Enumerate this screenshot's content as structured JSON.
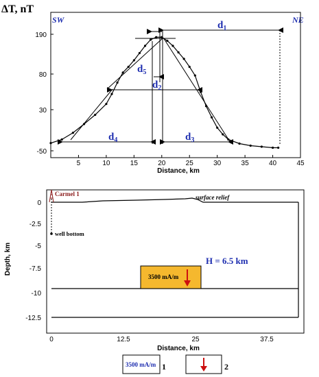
{
  "top_chart": {
    "ylabel": "ΔT, nT",
    "left_corner": "SW",
    "right_corner": "NE",
    "xlabel": "Distance, km",
    "yticks": [
      {
        "value": 190,
        "label": "190"
      },
      {
        "value": 80,
        "label": "80"
      },
      {
        "value": 30,
        "label": "30"
      },
      {
        "value": -50,
        "label": "-50"
      }
    ],
    "xticks": [
      {
        "value": 5,
        "label": "5"
      },
      {
        "value": 10,
        "label": "10"
      },
      {
        "value": 15,
        "label": "15"
      },
      {
        "value": 20,
        "label": "20"
      },
      {
        "value": 25,
        "label": "25"
      },
      {
        "value": 30,
        "label": "30"
      },
      {
        "value": 35,
        "label": "35"
      },
      {
        "value": 40,
        "label": "40"
      },
      {
        "value": 45,
        "label": "45"
      }
    ],
    "measures": {
      "d1": "d",
      "d2": "d",
      "d3": "d",
      "d4": "d",
      "d5": "d",
      "s1": "1",
      "s2": "2",
      "s3": "3",
      "s4": "4",
      "s5": "5"
    },
    "accent_color": "#1f2fb0"
  },
  "bottom_chart": {
    "ylabel": "Depth, km",
    "xlabel": "Distance, km",
    "well_name": "Carmel 1",
    "well_bottom": "well bottom",
    "surface_relief": "surface relief",
    "body_label": "3500 mA/m",
    "h_label": "H = 6.5 km",
    "yticks": [
      "0",
      "-2.5",
      "-5",
      "-7.5",
      "-10",
      "-12.5"
    ],
    "xticks": [
      "0",
      "12.5",
      "25",
      "37.5"
    ],
    "body_fill": "#f5b82e",
    "well_color": "#8a1a1a",
    "arrow_color": "#cc1010"
  },
  "legend": {
    "item1_label": "3500 mA/m",
    "item1_number": "1",
    "item2_number": "2"
  },
  "chart_data": [
    {
      "type": "line",
      "title": "",
      "xlabel": "Distance, km",
      "ylabel": "ΔT, nT",
      "xlim": [
        0,
        45
      ],
      "ylim": [
        -50,
        210
      ],
      "y_axis_scale": "nonlinear (ticks at -50, 30, 80, 190)",
      "x": [
        0,
        2,
        4,
        6,
        8,
        10,
        11,
        12,
        13,
        14,
        15,
        16,
        17,
        18,
        19,
        20,
        21,
        22,
        23,
        24,
        25,
        26,
        27,
        28,
        29,
        30,
        31,
        32,
        34,
        36,
        38,
        40,
        41
      ],
      "y": [
        -35,
        -28,
        -15,
        2,
        20,
        38,
        52,
        68,
        84,
        100,
        118,
        138,
        158,
        175,
        182,
        182,
        172,
        158,
        140,
        122,
        100,
        78,
        55,
        35,
        15,
        -5,
        -18,
        -28,
        -36,
        -40,
        -42,
        -44,
        -44
      ],
      "annotations": [
        "d1",
        "d2",
        "d3",
        "d4",
        "d5",
        "SW",
        "NE"
      ]
    },
    {
      "type": "table",
      "title": "",
      "xlabel": "Distance, km",
      "ylabel": "Depth, km",
      "xlim": [
        -1,
        44
      ],
      "ylim": [
        -13.5,
        1.5
      ],
      "well": {
        "name": "Carmel 1",
        "x": 0
      },
      "magnetized_body": {
        "label": "3500 mA/m",
        "x_range": [
          15,
          24
        ],
        "depth_range": [
          -7.5,
          -9.5
        ]
      },
      "layer_boundary_depth": -9.5,
      "annotations": [
        "surface relief",
        "well bottom",
        "H = 6.5 km"
      ]
    }
  ]
}
